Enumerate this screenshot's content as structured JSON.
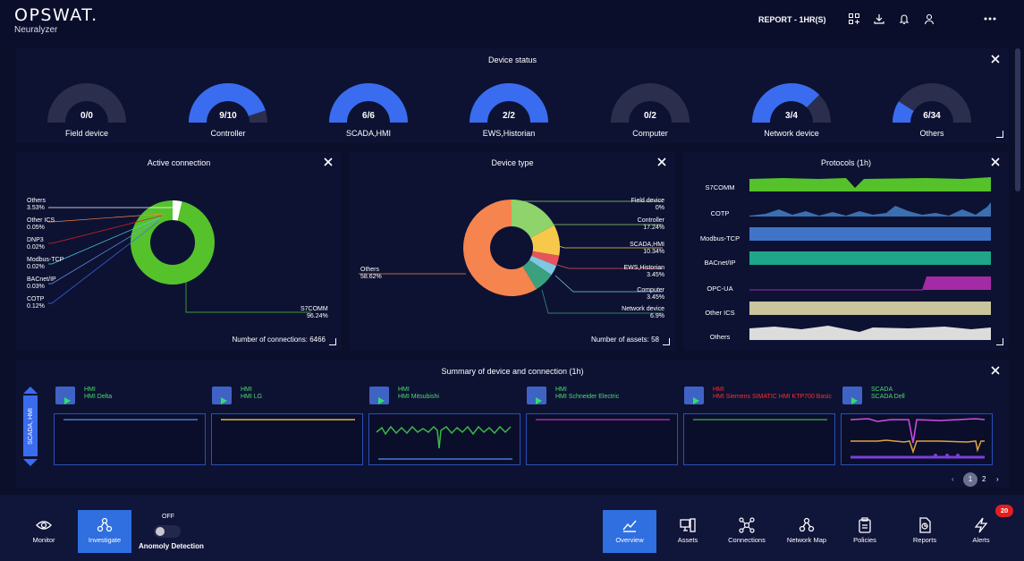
{
  "header": {
    "logo": "OPSWAT.",
    "product": "Neuralyzer",
    "report_label": "REPORT - 1HR(S)",
    "icons": [
      "qr-add-icon",
      "download-icon",
      "bell-icon",
      "user-icon",
      "more-icon"
    ]
  },
  "device_status": {
    "title": "Device status",
    "gauges": [
      {
        "label": "Field device",
        "value_text": "0/0",
        "fraction": 0.0
      },
      {
        "label": "Controller",
        "value_text": "9/10",
        "fraction": 0.9
      },
      {
        "label": "SCADA,HMI",
        "value_text": "6/6",
        "fraction": 1.0
      },
      {
        "label": "EWS,Historian",
        "value_text": "2/2",
        "fraction": 1.0
      },
      {
        "label": "Computer",
        "value_text": "0/2",
        "fraction": 0.0
      },
      {
        "label": "Network device",
        "value_text": "3/4",
        "fraction": 0.75
      },
      {
        "label": "Others",
        "value_text": "6/34",
        "fraction": 0.18
      }
    ]
  },
  "active_connection": {
    "title": "Active connection",
    "left_labels": [
      {
        "name": "Others",
        "pct": "3.53%"
      },
      {
        "name": "Other ICS",
        "pct": "0.05%"
      },
      {
        "name": "DNP3",
        "pct": "0.02%"
      },
      {
        "name": "Modbus-TCP",
        "pct": "0.02%"
      },
      {
        "name": "BACnet/IP",
        "pct": "0.03%"
      },
      {
        "name": "COTP",
        "pct": "0.12%"
      }
    ],
    "right_label": {
      "name": "S7COMM",
      "pct": "96.24%"
    },
    "footer": "Number of connections: 6466"
  },
  "device_type": {
    "title": "Device type",
    "left_label": {
      "name": "Others",
      "pct": "58.62%"
    },
    "right_labels": [
      {
        "name": "Field device",
        "pct": "0%"
      },
      {
        "name": "Controller",
        "pct": "17.24%"
      },
      {
        "name": "SCADA,HMI",
        "pct": "10.34%"
      },
      {
        "name": "EWS,Historian",
        "pct": "3.45%"
      },
      {
        "name": "Computer",
        "pct": "3.45%"
      },
      {
        "name": "Network device",
        "pct": "6.9%"
      }
    ],
    "footer": "Number of assets: 58"
  },
  "protocols": {
    "title": "Protocols (1h)",
    "rows": [
      "S7COMM",
      "COTP",
      "Modbus-TCP",
      "BACnet/IP",
      "OPC-UA",
      "Other ICS",
      "Others"
    ]
  },
  "summary": {
    "title": "Summary of device and connection (1h)",
    "side_tab": "SCADA, HMI",
    "devices": [
      {
        "type": "HMI",
        "name": "HMI Delta",
        "alert": false
      },
      {
        "type": "HMI",
        "name": "HMI LG",
        "alert": false
      },
      {
        "type": "HMI",
        "name": "HMI Mitsubishi",
        "alert": false
      },
      {
        "type": "HMI",
        "name": "HMI Schneider Electric",
        "alert": false
      },
      {
        "type": "HMI",
        "name": "HMI Siemens SIMATIC HMI KTP700 Basic",
        "alert": true
      },
      {
        "type": "SCADA",
        "name": "SCADA Dell",
        "alert": false
      }
    ],
    "pagination": {
      "pages": [
        "1",
        "2"
      ],
      "current": "1"
    }
  },
  "bottom_nav": {
    "monitor": "Monitor",
    "investigate": "Investigate",
    "anomaly_state": "OFF",
    "anomaly_label": "Anomoly Detection",
    "items": [
      "Overview",
      "Assets",
      "Connections",
      "Network Map",
      "Policies",
      "Reports",
      "Alerts"
    ],
    "alerts_badge": "20"
  },
  "colors": {
    "gauge_fill": "#3a6cf0",
    "gauge_track": "#2b2f4d",
    "s7comm_green": "#55c22b",
    "others_orange": "#f5844e",
    "alert_red": "#e02020",
    "active_blue": "#2f6fe0"
  }
}
